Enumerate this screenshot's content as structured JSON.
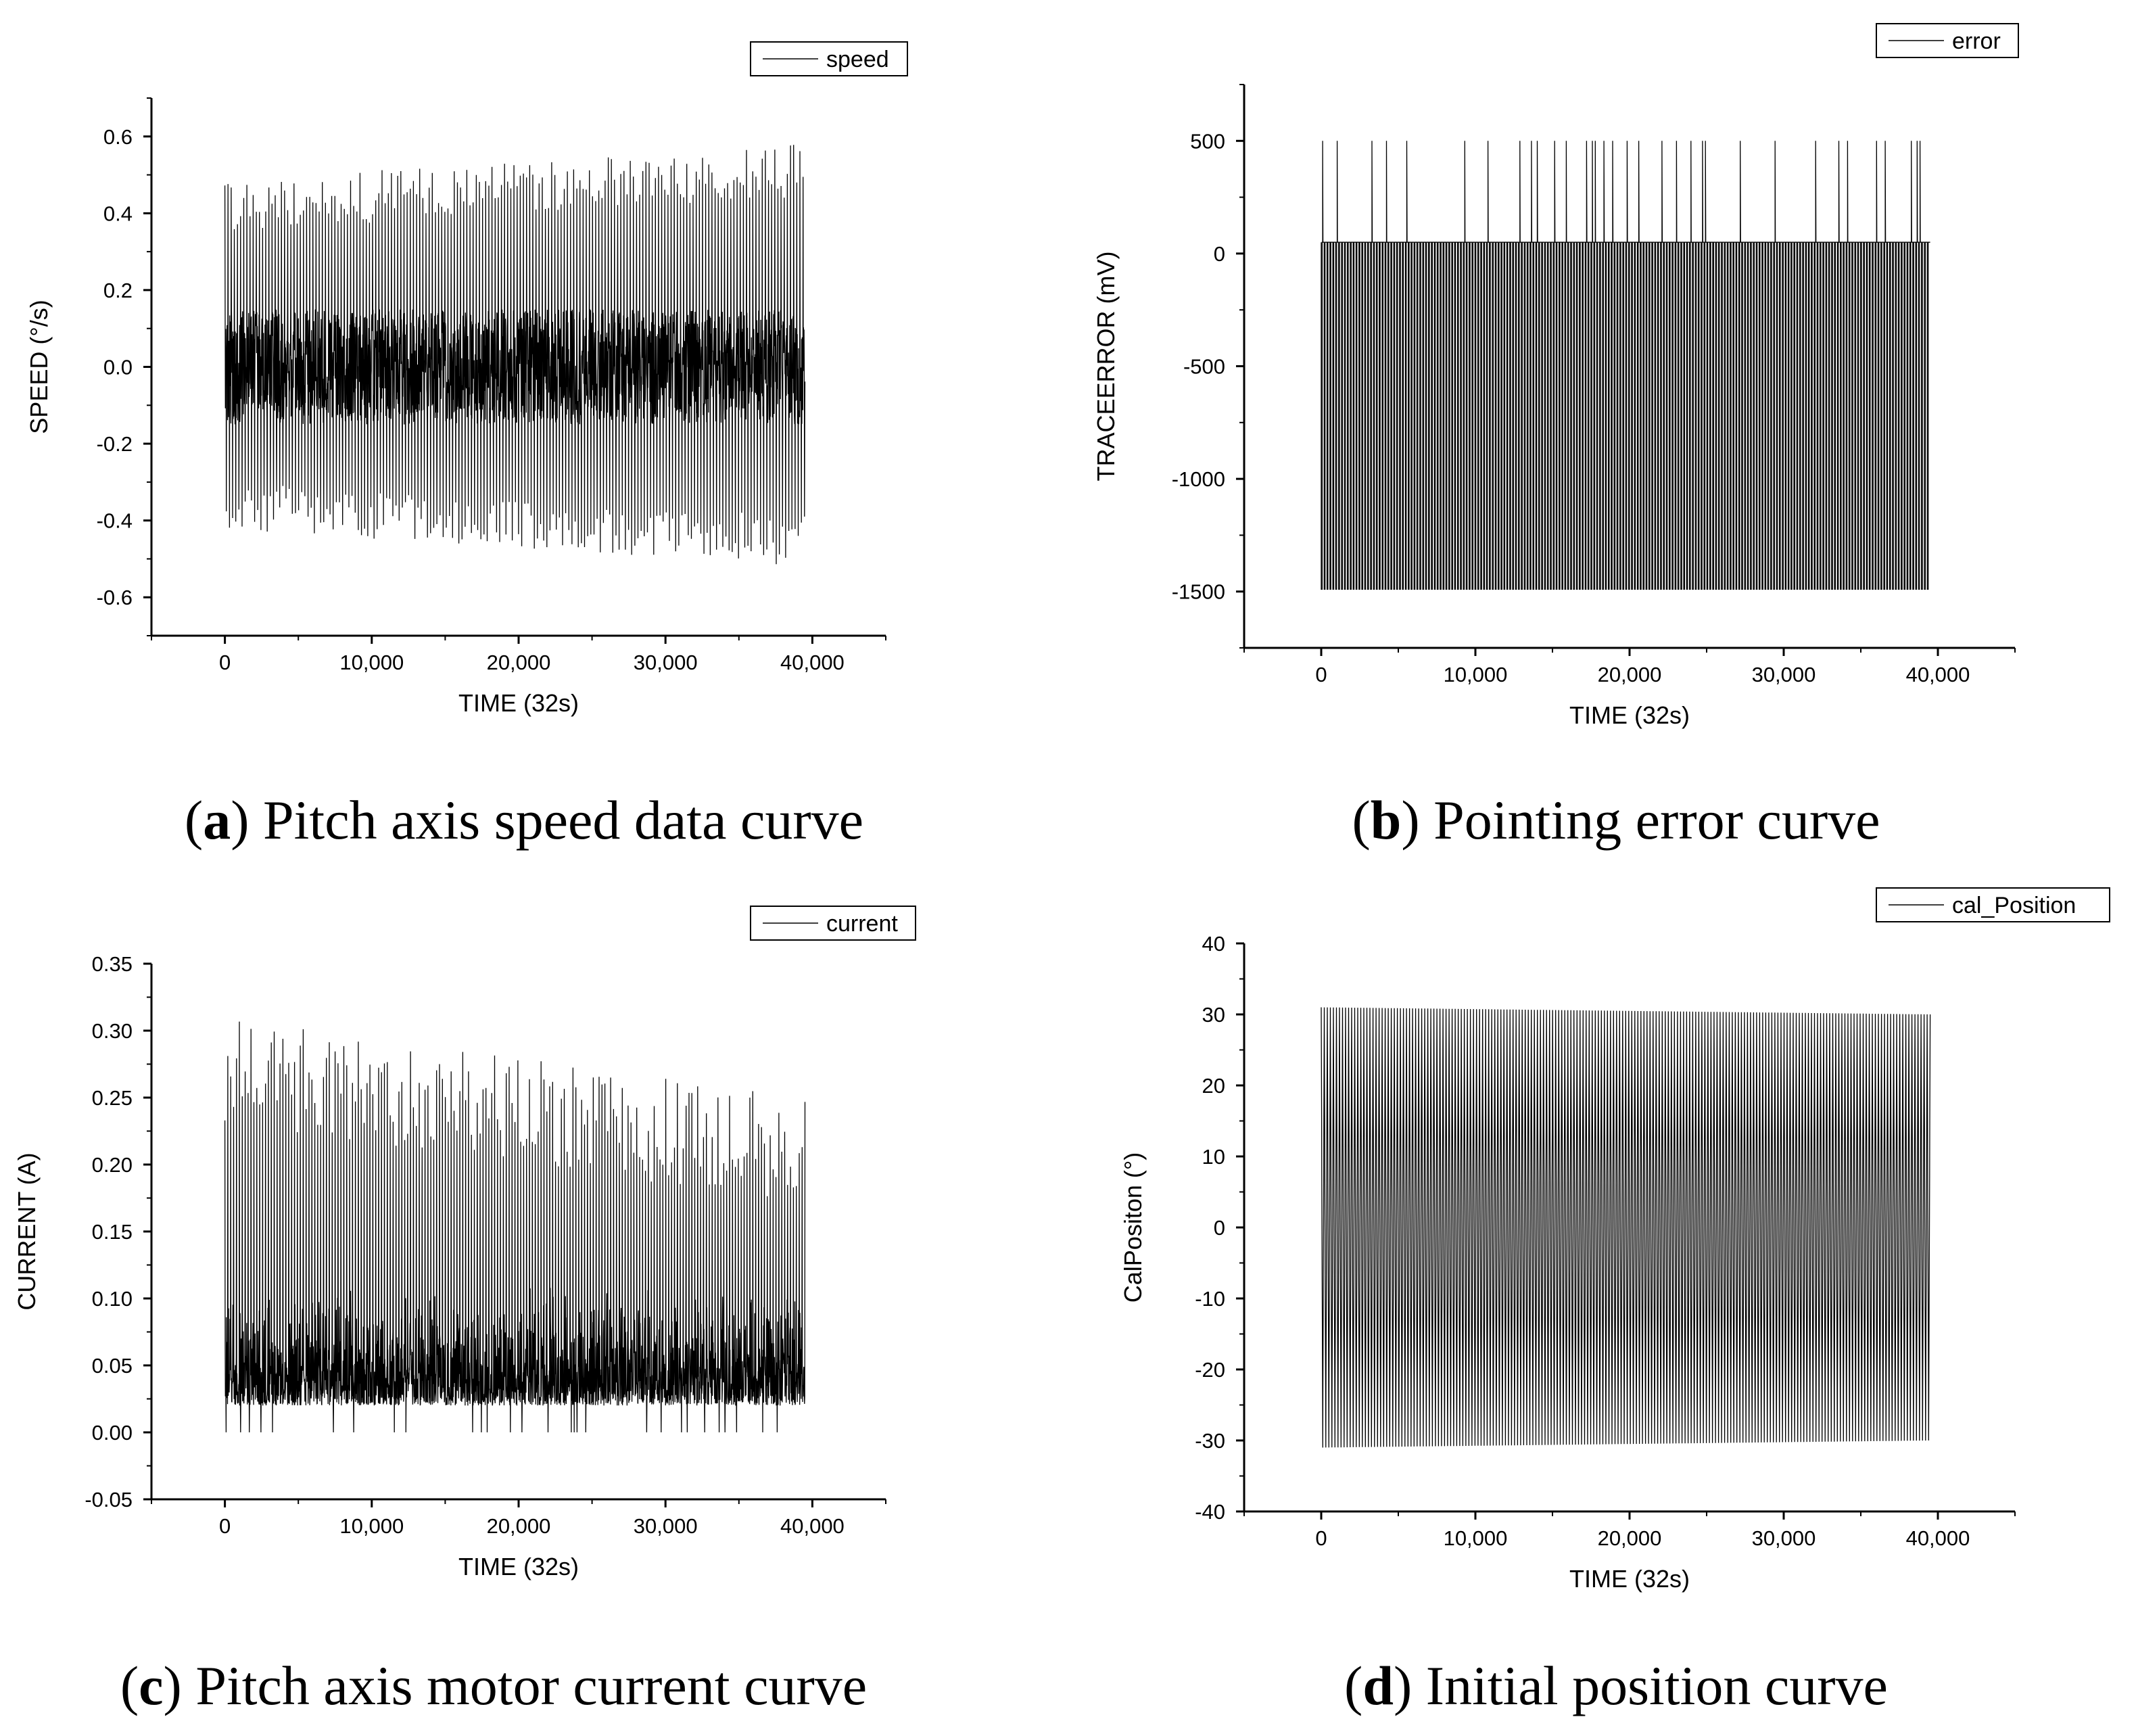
{
  "chart_data": [
    {
      "id": "a",
      "type": "line",
      "series": [
        {
          "name": "speed",
          "description": "oscillating pitch-axis speed"
        }
      ],
      "xlabel": "TIME (32s)",
      "ylabel": "SPEED (°/s)",
      "xlim": [
        -5000,
        45000
      ],
      "ylim": [
        -0.7,
        0.7
      ],
      "xticks": [
        0,
        10000,
        20000,
        30000,
        40000
      ],
      "xtick_labels": [
        "0",
        "10,000",
        "20,000",
        "30,000",
        "40,000"
      ],
      "yticks": [
        -0.6,
        -0.4,
        -0.2,
        0.0,
        0.2,
        0.4,
        0.6
      ],
      "ytick_labels": [
        "-0.6",
        "-0.4",
        "-0.2",
        "0.0",
        "0.2",
        "0.4",
        "0.6"
      ],
      "x_range": [
        0,
        39500
      ],
      "pattern": {
        "kind": "speed",
        "core": [
          -0.15,
          0.15
        ],
        "peak_max": [
          0.35,
          0.58
        ],
        "peak_min": [
          -0.52,
          -0.3
        ]
      },
      "caption_letter": "a",
      "caption_text": " Pitch axis speed data curve",
      "legend_position": "top-right"
    },
    {
      "id": "b",
      "type": "line",
      "series": [
        {
          "name": "error",
          "description": "pointing error trace"
        }
      ],
      "xlabel": "TIME (32s)",
      "ylabel": "TRACEERROR (mV)",
      "xlim": [
        -5000,
        45000
      ],
      "ylim": [
        -1750,
        750
      ],
      "xticks": [
        0,
        10000,
        20000,
        30000,
        40000
      ],
      "xtick_labels": [
        "0",
        "10,000",
        "20,000",
        "30,000",
        "40,000"
      ],
      "yticks": [
        -1500,
        -1000,
        -500,
        0,
        500
      ],
      "ytick_labels": [
        "-1500",
        "-1000",
        "-500",
        "0",
        "500"
      ],
      "x_range": [
        0,
        39500
      ],
      "pattern": {
        "kind": "error",
        "baseline": 50,
        "low": -1490,
        "high": 500
      },
      "caption_letter": "b",
      "caption_text": " Pointing error curve",
      "legend_position": "top-right"
    },
    {
      "id": "c",
      "type": "line",
      "series": [
        {
          "name": "current",
          "description": "pitch-axis motor current"
        }
      ],
      "xlabel": "TIME (32s)",
      "ylabel": "CURRENT (A)",
      "xlim": [
        -5000,
        45000
      ],
      "ylim": [
        -0.05,
        0.35
      ],
      "xticks": [
        0,
        10000,
        20000,
        30000,
        40000
      ],
      "xtick_labels": [
        "0",
        "10,000",
        "20,000",
        "30,000",
        "40,000"
      ],
      "yticks": [
        -0.05,
        0.0,
        0.05,
        0.1,
        0.15,
        0.2,
        0.25,
        0.3,
        0.35
      ],
      "ytick_labels": [
        "-0.05",
        "0.00",
        "0.05",
        "0.10",
        "0.15",
        "0.20",
        "0.25",
        "0.30",
        "0.35"
      ],
      "x_range": [
        0,
        39500
      ],
      "pattern": {
        "kind": "current",
        "floor": 0.02,
        "core_max": 0.11,
        "peak_max": [
          0.31,
          0.25
        ]
      },
      "caption_letter": "c",
      "caption_text": " Pitch axis motor current curve",
      "legend_position": "top-right"
    },
    {
      "id": "d",
      "type": "line",
      "series": [
        {
          "name": "cal_Position",
          "description": "initial position oscillation"
        }
      ],
      "xlabel": "TIME (32s)",
      "ylabel": "CalPositon (°)",
      "xlim": [
        -5000,
        45000
      ],
      "ylim": [
        -40,
        40
      ],
      "xticks": [
        0,
        10000,
        20000,
        30000,
        40000
      ],
      "xtick_labels": [
        "0",
        "10,000",
        "20,000",
        "30,000",
        "40,000"
      ],
      "yticks": [
        -40,
        -30,
        -20,
        -10,
        0,
        10,
        20,
        30,
        40
      ],
      "ytick_labels": [
        "-40",
        "-30",
        "-20",
        "-10",
        "0",
        "10",
        "20",
        "30",
        "40"
      ],
      "x_range": [
        0,
        39500
      ],
      "pattern": {
        "kind": "position",
        "amp_start": 31,
        "amp_end": 30
      },
      "caption_letter": "d",
      "caption_text": " Initial position curve",
      "legend_position": "top-right"
    }
  ]
}
